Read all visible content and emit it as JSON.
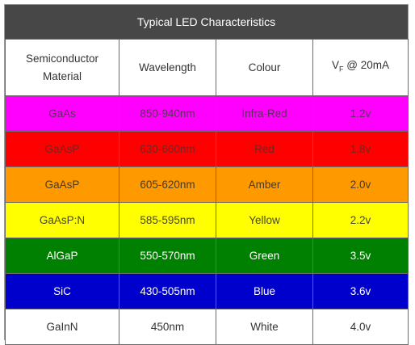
{
  "title": "Typical LED Characteristics",
  "headers": {
    "material": "Semiconductor Material",
    "wavelength": "Wavelength",
    "colour": "Colour",
    "vf_symbol": "V",
    "vf_subscript": "F",
    "vf_condition": " @ 20mA"
  },
  "rows": [
    {
      "material": "GaAs",
      "wavelength": "850-940nm",
      "colour": "Infra-Red",
      "vf": "1.2v",
      "bg": "#ff00ff"
    },
    {
      "material": "GaAsP",
      "wavelength": "630-660nm",
      "colour": "Red",
      "vf": "1.8v",
      "bg": "#ff0000"
    },
    {
      "material": "GaAsP",
      "wavelength": "605-620nm",
      "colour": "Amber",
      "vf": "2.0v",
      "bg": "#ff9900"
    },
    {
      "material": "GaAsP:N",
      "wavelength": "585-595nm",
      "colour": "Yellow",
      "vf": "2.2v",
      "bg": "#ffff00"
    },
    {
      "material": "AlGaP",
      "wavelength": "550-570nm",
      "colour": "Green",
      "vf": "3.5v",
      "bg": "#008000"
    },
    {
      "material": "SiC",
      "wavelength": "430-505nm",
      "colour": "Blue",
      "vf": "3.6v",
      "bg": "#0000cc"
    },
    {
      "material": "GaInN",
      "wavelength": "450nm",
      "colour": "White",
      "vf": "4.0v",
      "bg": "#ffffff"
    }
  ]
}
